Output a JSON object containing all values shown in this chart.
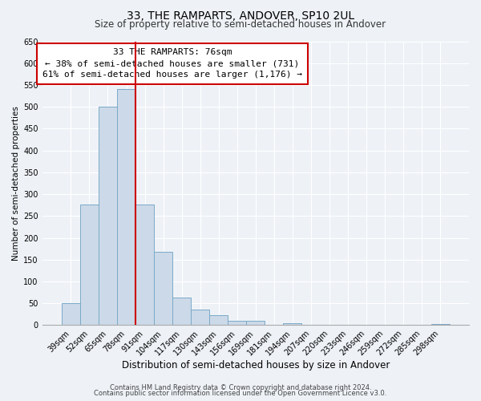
{
  "title": "33, THE RAMPARTS, ANDOVER, SP10 2UL",
  "subtitle": "Size of property relative to semi-detached houses in Andover",
  "xlabel": "Distribution of semi-detached houses by size in Andover",
  "ylabel": "Number of semi-detached properties",
  "bar_labels": [
    "39sqm",
    "52sqm",
    "65sqm",
    "78sqm",
    "91sqm",
    "104sqm",
    "117sqm",
    "130sqm",
    "143sqm",
    "156sqm",
    "169sqm",
    "181sqm",
    "194sqm",
    "207sqm",
    "220sqm",
    "233sqm",
    "246sqm",
    "259sqm",
    "272sqm",
    "285sqm",
    "298sqm"
  ],
  "bar_values": [
    50,
    277,
    500,
    540,
    277,
    168,
    63,
    36,
    22,
    10,
    10,
    0,
    4,
    0,
    0,
    0,
    0,
    0,
    0,
    0,
    2
  ],
  "bar_color": "#ccd9e8",
  "bar_edge_color": "#7aaac8",
  "property_line_label": "78sqm",
  "property_line_color": "#cc0000",
  "ylim": [
    0,
    650
  ],
  "yticks": [
    0,
    50,
    100,
    150,
    200,
    250,
    300,
    350,
    400,
    450,
    500,
    550,
    600,
    650
  ],
  "annotation_title": "33 THE RAMPARTS: 76sqm",
  "annotation_line1": "← 38% of semi-detached houses are smaller (731)",
  "annotation_line2": "61% of semi-detached houses are larger (1,176) →",
  "annotation_box_color": "#ffffff",
  "annotation_box_edge": "#cc0000",
  "footer1": "Contains HM Land Registry data © Crown copyright and database right 2024.",
  "footer2": "Contains public sector information licensed under the Open Government Licence v3.0.",
  "background_color": "#eef2f7",
  "grid_color": "#ffffff",
  "title_fontsize": 10,
  "subtitle_fontsize": 8.5,
  "xlabel_fontsize": 8.5,
  "ylabel_fontsize": 7.5,
  "tick_fontsize": 7,
  "annotation_fontsize": 8,
  "footer_fontsize": 6
}
